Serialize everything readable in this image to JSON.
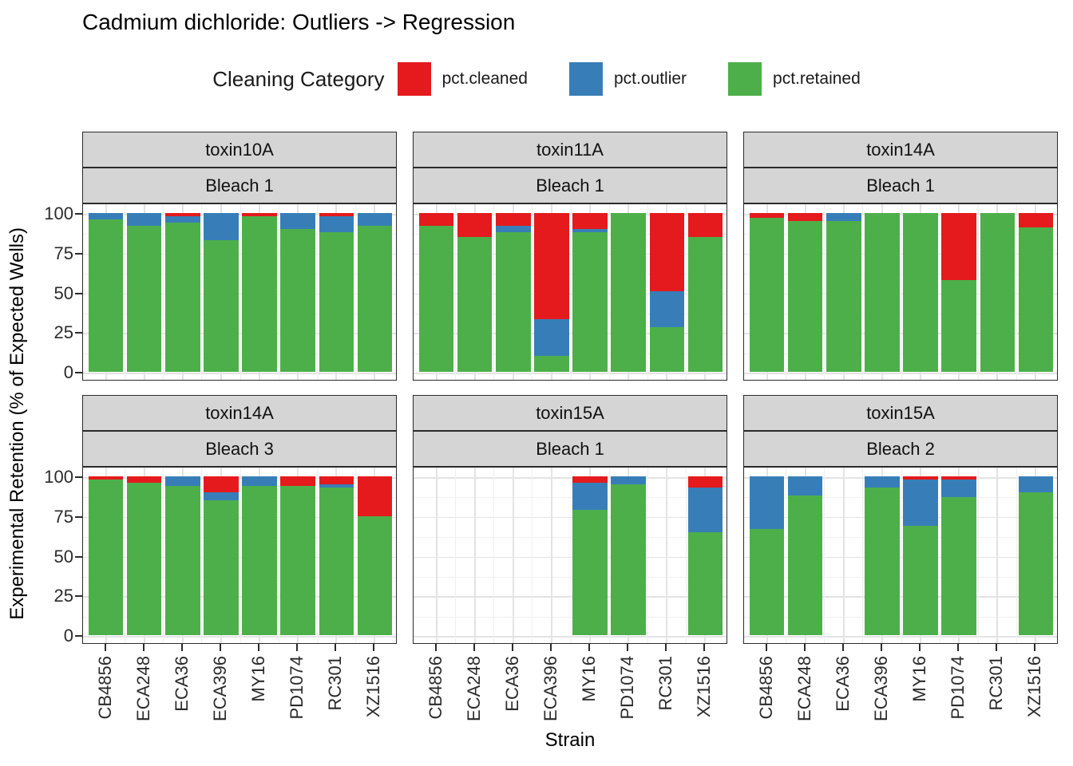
{
  "title": "Cadmium dichloride: Outliers -> Regression",
  "legend": {
    "title": "Cleaning Category",
    "items": [
      {
        "label": "pct.cleaned",
        "color": "#E41A1C"
      },
      {
        "label": "pct.outlier",
        "color": "#377EB8"
      },
      {
        "label": "pct.retained",
        "color": "#4DAF4A"
      }
    ]
  },
  "axes": {
    "y_title": "Experimental Retention (% of Expected Wells)",
    "x_title": "Strain",
    "y_ticks": [
      100,
      75,
      50,
      25,
      0
    ]
  },
  "chart_data": {
    "type": "bar",
    "stacked": true,
    "ylim": [
      0,
      100
    ],
    "grid": "on",
    "legend_position": "top",
    "categories": [
      "CB4856",
      "ECA248",
      "ECA36",
      "ECA396",
      "MY16",
      "PD1074",
      "RC301",
      "XZ1516"
    ],
    "stack_order_bottom_to_top": [
      "pct.retained",
      "pct.outlier",
      "pct.cleaned"
    ],
    "facets": [
      {
        "toxin": "toxin10A",
        "bleach": "Bleach 1",
        "series": {
          "pct.cleaned": [
            0,
            0,
            2,
            0,
            2,
            0,
            2,
            0
          ],
          "pct.outlier": [
            4,
            8,
            4,
            17,
            0,
            10,
            10,
            8
          ],
          "pct.retained": [
            96,
            92,
            94,
            83,
            98,
            90,
            88,
            92
          ]
        }
      },
      {
        "toxin": "toxin11A",
        "bleach": "Bleach 1",
        "series": {
          "pct.cleaned": [
            8,
            15,
            8,
            67,
            10,
            0,
            49,
            15
          ],
          "pct.outlier": [
            0,
            0,
            4,
            23,
            2,
            0,
            23,
            0
          ],
          "pct.retained": [
            92,
            85,
            88,
            10,
            88,
            100,
            28,
            85
          ]
        }
      },
      {
        "toxin": "toxin14A",
        "bleach": "Bleach 1",
        "series": {
          "pct.cleaned": [
            3,
            5,
            0,
            0,
            0,
            42,
            0,
            9
          ],
          "pct.outlier": [
            0,
            0,
            5,
            0,
            0,
            0,
            0,
            0
          ],
          "pct.retained": [
            97,
            95,
            95,
            100,
            100,
            58,
            100,
            91
          ]
        }
      },
      {
        "toxin": "toxin14A",
        "bleach": "Bleach 3",
        "series": {
          "pct.cleaned": [
            2,
            4,
            0,
            10,
            0,
            6,
            5,
            25
          ],
          "pct.outlier": [
            0,
            0,
            6,
            5,
            6,
            0,
            2,
            0
          ],
          "pct.retained": [
            98,
            96,
            94,
            85,
            94,
            94,
            93,
            75
          ]
        }
      },
      {
        "toxin": "toxin15A",
        "bleach": "Bleach 1",
        "series": {
          "pct.cleaned": [
            null,
            null,
            null,
            null,
            4,
            0,
            null,
            7
          ],
          "pct.outlier": [
            null,
            null,
            null,
            null,
            17,
            5,
            null,
            28
          ],
          "pct.retained": [
            null,
            null,
            null,
            null,
            79,
            95,
            null,
            65
          ]
        }
      },
      {
        "toxin": "toxin15A",
        "bleach": "Bleach 2",
        "series": {
          "pct.cleaned": [
            0,
            0,
            null,
            0,
            2,
            2,
            null,
            0
          ],
          "pct.outlier": [
            33,
            12,
            null,
            7,
            29,
            11,
            null,
            10
          ],
          "pct.retained": [
            67,
            88,
            null,
            93,
            69,
            87,
            null,
            90
          ]
        }
      }
    ]
  },
  "colors": {
    "cleaned": "#E41A1C",
    "outlier": "#377EB8",
    "retained": "#4DAF4A",
    "strip_bg": "#d5d5d5",
    "panel_border": "#2b2b2b",
    "grid_major": "#e3e3e3",
    "grid_minor": "#f0f0f0"
  }
}
